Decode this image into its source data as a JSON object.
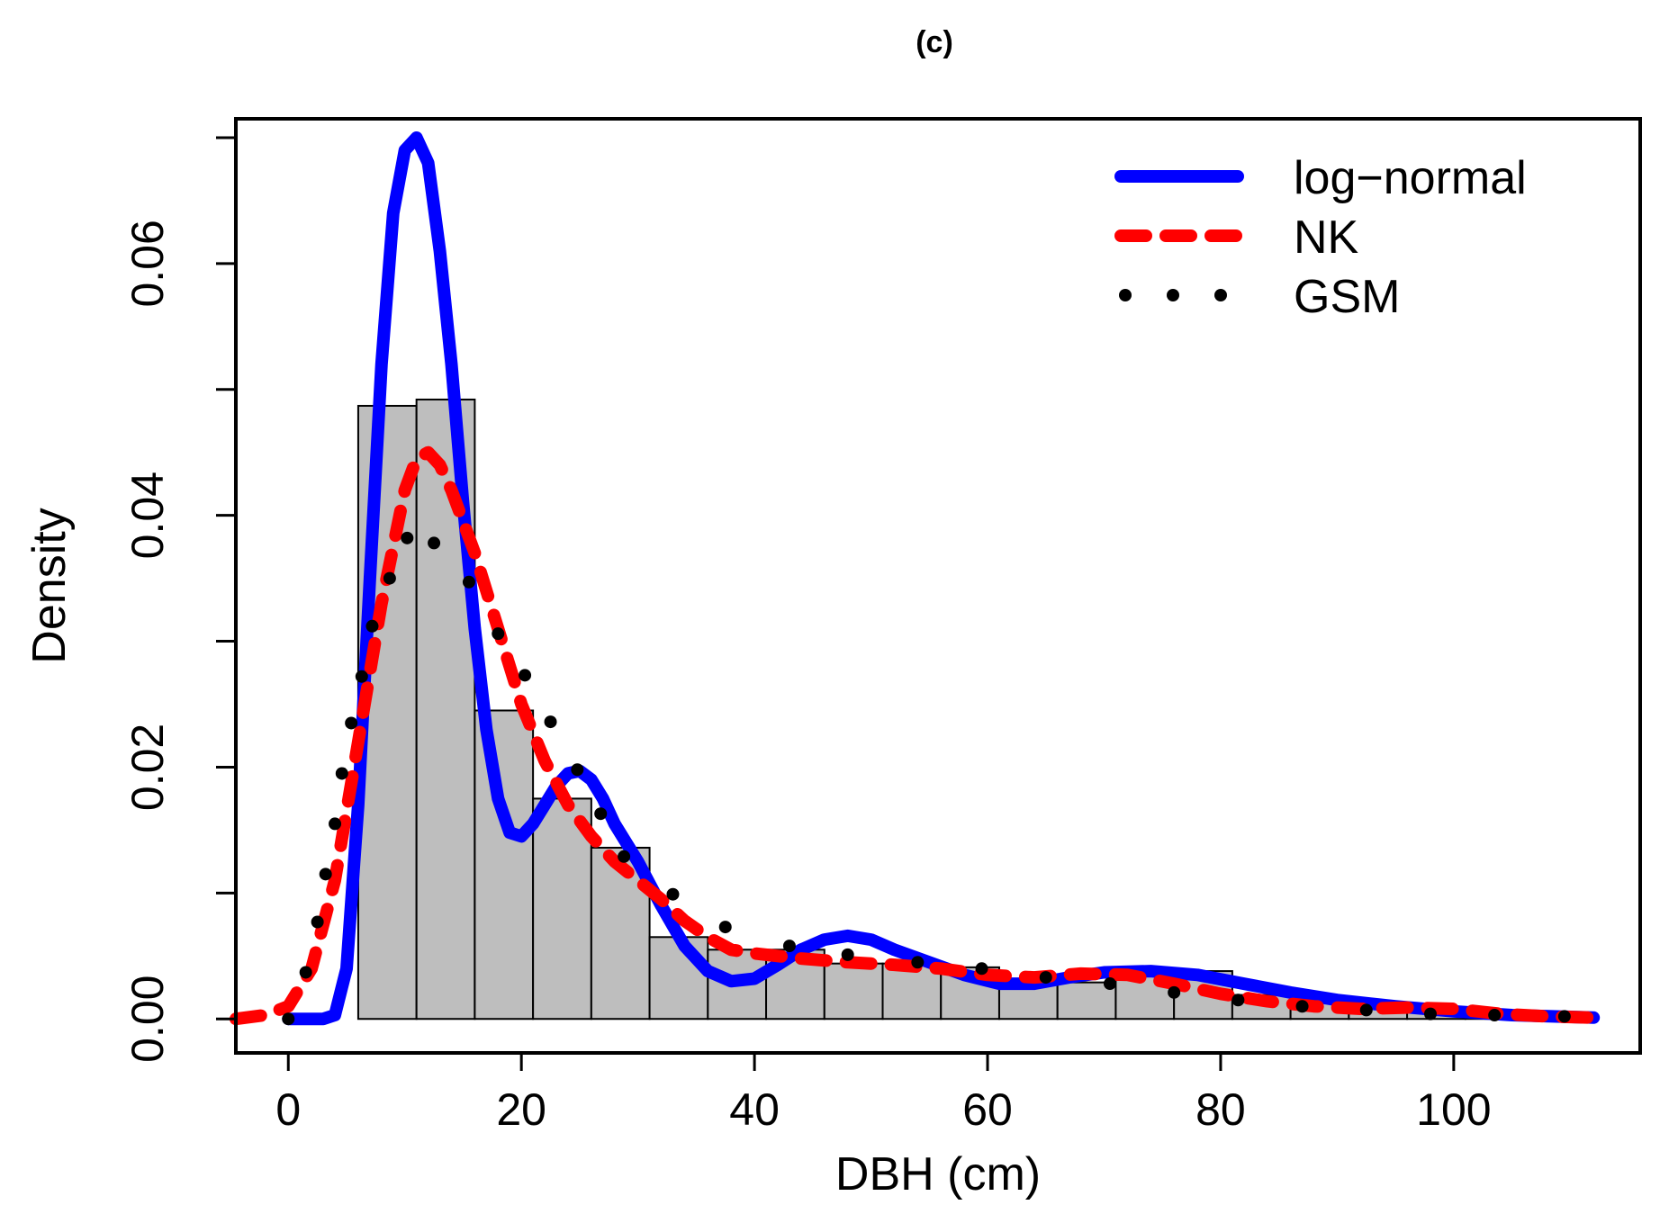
{
  "chart_data": {
    "type": "histogram",
    "title": "(c)",
    "xlabel": "DBH (cm)",
    "ylabel": "Density",
    "xlim": [
      -4.5,
      116
    ],
    "ylim": [
      -0.0027,
      0.0715
    ],
    "x_ticks": [
      0,
      20,
      40,
      60,
      80,
      100
    ],
    "x_tick_labels": [
      "0",
      "20",
      "40",
      "60",
      "80",
      "100"
    ],
    "y_ticks": [
      0.0,
      0.01,
      0.02,
      0.03,
      0.04,
      0.05,
      0.06,
      0.07
    ],
    "y_tick_labels": [
      "0.00",
      "",
      "0.02",
      "",
      "0.04",
      "",
      "0.06",
      ""
    ],
    "grid": false,
    "legend_position": "top-right",
    "colors": {
      "bar_fill": "#bebebe",
      "bar_stroke": "#000000",
      "lognormal": "#0000ff",
      "nk": "#ff0000",
      "gsm": "#000000"
    },
    "histogram": {
      "bin_edges": [
        6,
        11,
        16,
        21,
        26,
        31,
        36,
        41,
        46,
        51,
        56,
        61,
        66,
        71,
        76,
        81,
        86,
        91,
        96,
        101,
        106,
        111
      ],
      "densities": [
        0.0487,
        0.0492,
        0.0245,
        0.0175,
        0.0136,
        0.0065,
        0.0055,
        0.0055,
        0.0044,
        0.0044,
        0.0041,
        0.0029,
        0.0029,
        0.0038,
        0.0038,
        0.0019,
        0.0015,
        0.0009,
        0.0005,
        0.0004,
        0.0003
      ]
    },
    "series": [
      {
        "name": "log−normal",
        "style": "solid",
        "x": [
          0,
          3,
          4,
          5,
          6,
          7,
          8,
          9,
          10,
          11,
          12,
          13,
          14,
          15,
          16,
          17,
          18,
          19,
          20,
          21,
          22,
          23,
          24,
          25,
          26,
          27,
          28,
          30,
          32,
          34,
          36,
          38,
          40,
          42,
          44,
          46,
          48,
          50,
          52,
          55,
          58,
          61,
          64,
          67,
          70,
          74,
          78,
          82,
          86,
          90,
          95,
          100,
          105,
          112
        ],
        "y": [
          0,
          0,
          0.0003,
          0.004,
          0.017,
          0.035,
          0.052,
          0.064,
          0.069,
          0.07,
          0.068,
          0.061,
          0.052,
          0.041,
          0.031,
          0.023,
          0.0175,
          0.0148,
          0.0145,
          0.0155,
          0.017,
          0.0185,
          0.0195,
          0.0197,
          0.019,
          0.0175,
          0.0155,
          0.0125,
          0.009,
          0.0058,
          0.0038,
          0.003,
          0.0032,
          0.0043,
          0.0055,
          0.0063,
          0.0066,
          0.0063,
          0.0055,
          0.0045,
          0.0035,
          0.0028,
          0.0028,
          0.0033,
          0.0037,
          0.0038,
          0.0035,
          0.0028,
          0.0021,
          0.0015,
          0.001,
          0.0006,
          0.0003,
          0.0001
        ]
      },
      {
        "name": "NK",
        "style": "dashed",
        "x": [
          -4.5,
          -2,
          0,
          2,
          4,
          6,
          8,
          10,
          11,
          12,
          13,
          14,
          16,
          18,
          20,
          22,
          24,
          26,
          28,
          30,
          32,
          34,
          36,
          38,
          40,
          44,
          48,
          52,
          56,
          60,
          64,
          68,
          72,
          76,
          80,
          84,
          88,
          92,
          96,
          100,
          104,
          108,
          112
        ],
        "y": [
          0,
          0.0003,
          0.001,
          0.004,
          0.011,
          0.022,
          0.033,
          0.042,
          0.0445,
          0.045,
          0.044,
          0.042,
          0.037,
          0.031,
          0.025,
          0.0205,
          0.017,
          0.0145,
          0.0125,
          0.011,
          0.0095,
          0.0078,
          0.0065,
          0.0055,
          0.0052,
          0.0048,
          0.0045,
          0.0043,
          0.004,
          0.0035,
          0.0033,
          0.0036,
          0.0035,
          0.0028,
          0.002,
          0.0014,
          0.001,
          0.0008,
          0.0009,
          0.0008,
          0.0004,
          0.0002,
          0.0001
        ]
      },
      {
        "name": "GSM",
        "style": "dotted",
        "x": [
          0,
          1.5,
          2.5,
          3.2,
          4,
          4.6,
          5.4,
          6.3,
          7.2,
          8.7,
          10.2,
          12.5,
          15.5,
          18,
          20.3,
          22.5,
          24.8,
          26.8,
          28.8,
          33,
          37.5,
          43,
          48,
          54,
          59.5,
          65,
          70.5,
          76,
          81.5,
          87,
          92.5,
          98,
          103.5,
          109.5
        ],
        "y": [
          0,
          0.0037,
          0.0077,
          0.0115,
          0.0155,
          0.0195,
          0.0235,
          0.0272,
          0.0312,
          0.035,
          0.0382,
          0.0378,
          0.0347,
          0.0306,
          0.0273,
          0.0236,
          0.0198,
          0.0163,
          0.0129,
          0.0099,
          0.0073,
          0.0058,
          0.0051,
          0.0045,
          0.004,
          0.0033,
          0.0028,
          0.0021,
          0.0015,
          0.001,
          0.0007,
          0.0004,
          0.0003,
          0.0002
        ]
      }
    ]
  }
}
